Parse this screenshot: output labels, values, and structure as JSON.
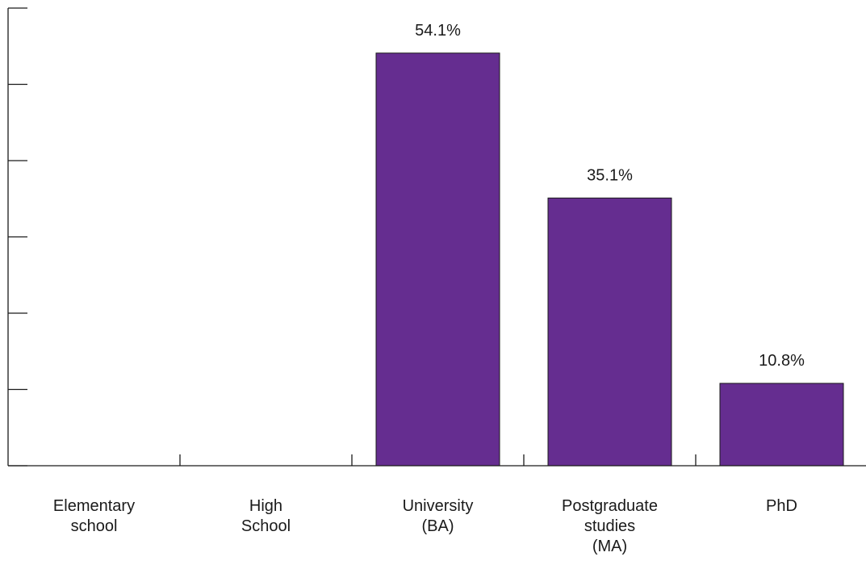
{
  "chart_data": {
    "type": "bar",
    "categories": [
      [
        "Elementary",
        "school"
      ],
      [
        "High",
        "School"
      ],
      [
        "University",
        "(BA)"
      ],
      [
        "Postgraduate",
        "studies",
        "(MA)"
      ],
      [
        "PhD"
      ]
    ],
    "values": [
      0,
      0,
      54.1,
      35.1,
      10.8
    ],
    "data_labels": [
      "",
      "",
      "54.1%",
      "35.1%",
      "10.8%"
    ],
    "ylim": [
      0,
      60
    ],
    "yticks": [
      0,
      10,
      20,
      30,
      40,
      50,
      60
    ],
    "ytick_labels_shown": false,
    "title": "",
    "xlabel": "",
    "ylabel": "",
    "bar_color": "#652d90",
    "grid": false,
    "legend": "none"
  }
}
